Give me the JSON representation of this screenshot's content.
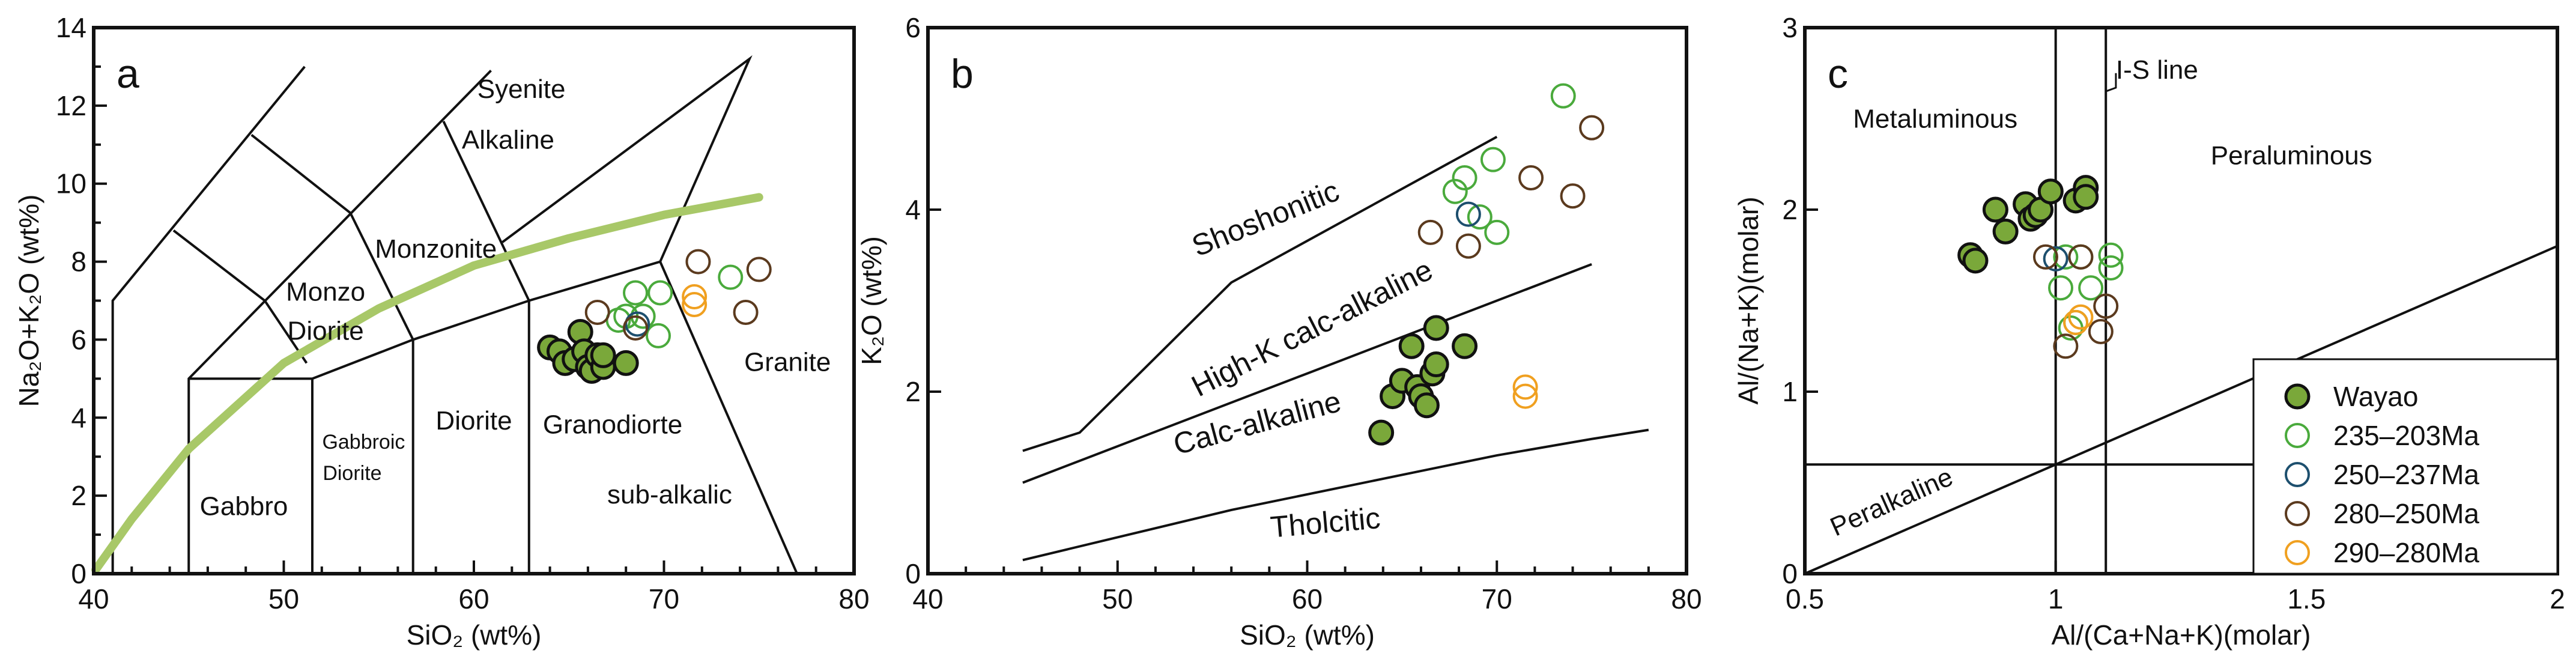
{
  "legend": {
    "entries": [
      {
        "name": "Wayao",
        "color": "#7aa83a",
        "filled": true
      },
      {
        "name": "235–203Ma",
        "color": "#4aaa3c",
        "filled": false
      },
      {
        "name": "250–237Ma",
        "color": "#1d4f6e",
        "filled": false
      },
      {
        "name": "280–250Ma",
        "color": "#5b3a1e",
        "filled": false
      },
      {
        "name": "290–280Ma",
        "color": "#f0a020",
        "filled": false
      }
    ]
  },
  "chart_data": [
    {
      "panel": "a",
      "type": "scatter",
      "xlabel": "SiO₂ (wt%)",
      "ylabel": "Na₂O+K₂O (wt%)",
      "xlim": [
        40,
        80
      ],
      "ylim": [
        0,
        14
      ],
      "xticks": [
        40,
        50,
        60,
        70,
        80
      ],
      "yticks": [
        0,
        2,
        4,
        6,
        8,
        10,
        12,
        14
      ],
      "curve_color": "#a8c868",
      "annotation_color_sub_alkalic": "#cc2288",
      "annotations": [
        "Syenite",
        "Alkaline",
        "Monzonite",
        "Monzo",
        "Diorite",
        "Gabbro",
        "Gabbroic",
        "Diorite",
        "Diorite",
        "Granodiorte",
        "sub-alkalic",
        "Granite"
      ],
      "boundaries": [
        [
          [
            41,
            0
          ],
          [
            41,
            7
          ],
          [
            51.1,
            13
          ]
        ],
        [
          [
            45,
            0
          ],
          [
            45,
            5
          ],
          [
            60.9,
            12.9
          ]
        ],
        [
          [
            61.5,
            8.5
          ],
          [
            74.5,
            13.2
          ],
          [
            69.8,
            8
          ],
          [
            77,
            0
          ]
        ],
        [
          [
            45,
            5
          ],
          [
            51.5,
            5
          ],
          [
            56.8,
            6
          ],
          [
            62.9,
            7
          ],
          [
            69.8,
            8
          ]
        ],
        [
          [
            51.5,
            0
          ],
          [
            51.5,
            5
          ]
        ],
        [
          [
            56.8,
            0
          ],
          [
            56.8,
            6
          ]
        ],
        [
          [
            62.9,
            0
          ],
          [
            62.9,
            7
          ]
        ],
        [
          [
            44.2,
            8.8
          ],
          [
            49,
            7
          ],
          [
            51.2,
            5.4
          ]
        ],
        [
          [
            48.3,
            11.25
          ],
          [
            53.5,
            9.25
          ],
          [
            56.8,
            6
          ]
        ],
        [
          [
            58.4,
            11.6
          ],
          [
            62.9,
            7
          ]
        ]
      ],
      "alkaline_curve": [
        [
          40.1,
          0.1
        ],
        [
          42,
          1.4
        ],
        [
          45,
          3.2
        ],
        [
          50,
          5.4
        ],
        [
          55,
          6.8
        ],
        [
          60,
          7.9
        ],
        [
          65,
          8.6
        ],
        [
          70,
          9.2
        ],
        [
          75,
          9.65
        ]
      ],
      "series": [
        {
          "name": "Wayao",
          "points": [
            [
              64,
              5.8
            ],
            [
              64.5,
              5.7
            ],
            [
              64.8,
              5.4
            ],
            [
              65.3,
              5.5
            ],
            [
              65.6,
              6.2
            ],
            [
              65.8,
              5.7
            ],
            [
              66,
              5.3
            ],
            [
              66.2,
              5.2
            ],
            [
              66.5,
              5.6
            ],
            [
              66.8,
              5.3
            ],
            [
              66.8,
              5.6
            ],
            [
              68,
              5.4
            ]
          ]
        },
        {
          "name": "235–203Ma",
          "points": [
            [
              68.5,
              7.2
            ],
            [
              69.8,
              7.2
            ],
            [
              68,
              6.6
            ],
            [
              68.9,
              6.6
            ],
            [
              69.7,
              6.1
            ],
            [
              73.5,
              7.6
            ],
            [
              67.6,
              6.5
            ]
          ]
        },
        {
          "name": "250–237Ma",
          "points": [
            [
              68.6,
              6.4
            ]
          ]
        },
        {
          "name": "280–250Ma",
          "points": [
            [
              66.5,
              6.7
            ],
            [
              68.5,
              6.3
            ],
            [
              71.8,
              8.0
            ],
            [
              75,
              7.8
            ],
            [
              74.3,
              6.7
            ]
          ]
        },
        {
          "name": "290–280Ma",
          "points": [
            [
              71.6,
              7.1
            ],
            [
              71.6,
              6.9
            ]
          ]
        }
      ]
    },
    {
      "panel": "b",
      "type": "scatter",
      "xlabel": "SiO₂ (wt%)",
      "ylabel": "K₂O (wt%)",
      "xlim": [
        40,
        80
      ],
      "ylim": [
        0,
        6
      ],
      "xticks": [
        40,
        50,
        60,
        70,
        80
      ],
      "yticks": [
        0,
        2,
        4,
        6
      ],
      "annotations": [
        "Shoshonitic",
        "High-K calc-alkaline",
        "Calc-alkaline",
        "Tholcitic"
      ],
      "boundaries": [
        [
          [
            45,
            1.35
          ],
          [
            48,
            1.55
          ],
          [
            56,
            3.2
          ],
          [
            70,
            4.8
          ]
        ],
        [
          [
            45,
            1.0
          ],
          [
            60,
            2.2
          ],
          [
            75,
            3.4
          ]
        ],
        [
          [
            45,
            0.15
          ],
          [
            56,
            0.7
          ],
          [
            70,
            1.3
          ],
          [
            75,
            1.48
          ],
          [
            78,
            1.58
          ]
        ]
      ],
      "series": [
        {
          "name": "Wayao",
          "points": [
            [
              63.9,
              1.55
            ],
            [
              64.5,
              1.95
            ],
            [
              65,
              2.12
            ],
            [
              65.5,
              2.5
            ],
            [
              65.8,
              2.05
            ],
            [
              66,
              1.95
            ],
            [
              66.3,
              1.85
            ],
            [
              66.6,
              2.2
            ],
            [
              66.8,
              2.7
            ],
            [
              66.8,
              2.3
            ],
            [
              68.3,
              2.5
            ]
          ]
        },
        {
          "name": "235–203Ma",
          "points": [
            [
              73.5,
              5.25
            ],
            [
              69.8,
              4.55
            ],
            [
              68.3,
              4.35
            ],
            [
              67.8,
              4.2
            ],
            [
              69.1,
              3.92
            ],
            [
              70,
              3.75
            ]
          ]
        },
        {
          "name": "250–237Ma",
          "points": [
            [
              68.5,
              3.95
            ]
          ]
        },
        {
          "name": "280–250Ma",
          "points": [
            [
              75,
              4.9
            ],
            [
              71.8,
              4.35
            ],
            [
              74,
              4.15
            ],
            [
              66.5,
              3.75
            ],
            [
              68.5,
              3.6
            ]
          ]
        },
        {
          "name": "290–280Ma",
          "points": [
            [
              71.5,
              2.05
            ],
            [
              71.5,
              1.95
            ]
          ]
        }
      ]
    },
    {
      "panel": "c",
      "type": "scatter",
      "xlabel": "Al/(Ca+Na+K)(molar)",
      "ylabel": "Al/(Na+K)(molar)",
      "xlim": [
        0.5,
        2
      ],
      "ylim": [
        0,
        3
      ],
      "xticks": [
        0.5,
        1,
        1.5,
        2
      ],
      "xtick_labels": [
        "0.5",
        "1",
        "1.5",
        "2"
      ],
      "yticks": [
        0,
        1,
        2,
        3
      ],
      "annotations": [
        "I-S line",
        "Metaluminous",
        "Peraluminous",
        "Peralkaline"
      ],
      "boundaries": [
        [
          [
            1,
            0
          ],
          [
            1,
            3
          ]
        ],
        [
          [
            1.1,
            0
          ],
          [
            1.1,
            3
          ]
        ],
        [
          [
            0.5,
            0
          ],
          [
            2,
            1.8
          ]
        ],
        [
          [
            0.5,
            0.6
          ],
          [
            1.42,
            0.6
          ]
        ]
      ],
      "series": [
        {
          "name": "Wayao",
          "points": [
            [
              0.83,
              1.75
            ],
            [
              0.84,
              1.72
            ],
            [
              0.88,
              2.0
            ],
            [
              0.9,
              1.88
            ],
            [
              0.94,
              2.03
            ],
            [
              0.95,
              1.95
            ],
            [
              0.96,
              1.97
            ],
            [
              0.97,
              2.0
            ],
            [
              0.99,
              2.1
            ],
            [
              1.04,
              2.05
            ],
            [
              1.06,
              2.12
            ],
            [
              1.06,
              2.07
            ]
          ]
        },
        {
          "name": "235–203Ma",
          "points": [
            [
              1.02,
              1.74
            ],
            [
              1.05,
              1.74
            ],
            [
              1.11,
              1.75
            ],
            [
              1.11,
              1.68
            ],
            [
              1.01,
              1.57
            ],
            [
              1.07,
              1.57
            ],
            [
              1.03,
              1.35
            ],
            [
              1.04,
              1.38
            ]
          ]
        },
        {
          "name": "250–237Ma",
          "points": [
            [
              1.0,
              1.73
            ]
          ]
        },
        {
          "name": "280–250Ma",
          "points": [
            [
              0.98,
              1.74
            ],
            [
              1.05,
              1.74
            ],
            [
              1.1,
              1.47
            ],
            [
              1.09,
              1.33
            ],
            [
              1.02,
              1.25
            ]
          ]
        },
        {
          "name": "290–280Ma",
          "points": [
            [
              1.04,
              1.38
            ],
            [
              1.05,
              1.41
            ]
          ]
        }
      ]
    }
  ]
}
